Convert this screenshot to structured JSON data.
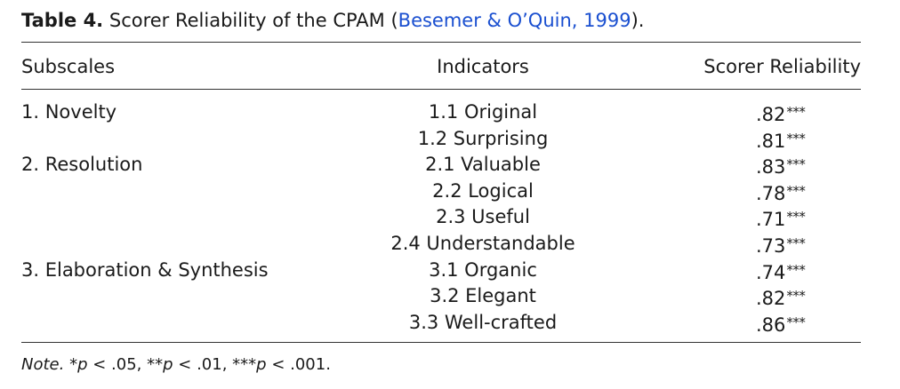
{
  "caption": {
    "label": "Table 4.",
    "text_before": "Scorer Reliability of the CPAM (",
    "citation": "Besemer & O’Quin, 1999",
    "text_after": ")."
  },
  "headers": {
    "subscales": "Subscales",
    "indicators": "Indicators",
    "reliability": "Scorer Reliability"
  },
  "rows": [
    {
      "subscale": "1. Novelty",
      "indicator": "1.1 Original",
      "value": ".82",
      "sig": "***"
    },
    {
      "subscale": "",
      "indicator": "1.2 Surprising",
      "value": ".81",
      "sig": "***"
    },
    {
      "subscale": "2. Resolution",
      "indicator": "2.1 Valuable",
      "value": ".83",
      "sig": "***"
    },
    {
      "subscale": "",
      "indicator": "2.2 Logical",
      "value": ".78",
      "sig": "***"
    },
    {
      "subscale": "",
      "indicator": "2.3 Useful",
      "value": ".71",
      "sig": "***"
    },
    {
      "subscale": "",
      "indicator": "2.4 Understandable",
      "value": ".73",
      "sig": "***"
    },
    {
      "subscale": "3. Elaboration & Synthesis",
      "indicator": "3.1 Organic",
      "value": ".74",
      "sig": "***"
    },
    {
      "subscale": "",
      "indicator": "3.2 Elegant",
      "value": ".82",
      "sig": "***"
    },
    {
      "subscale": "",
      "indicator": "3.3 Well-crafted",
      "value": ".86",
      "sig": "***"
    }
  ],
  "note": {
    "label": "Note.",
    "s1_stars": "*",
    "s1_p": "p",
    "s1_rest": " < .05, ",
    "s2_stars": "**",
    "s2_p": "p",
    "s2_rest": " < .01, ",
    "s3_stars": "***",
    "s3_p": "p",
    "s3_rest": " < .001."
  }
}
